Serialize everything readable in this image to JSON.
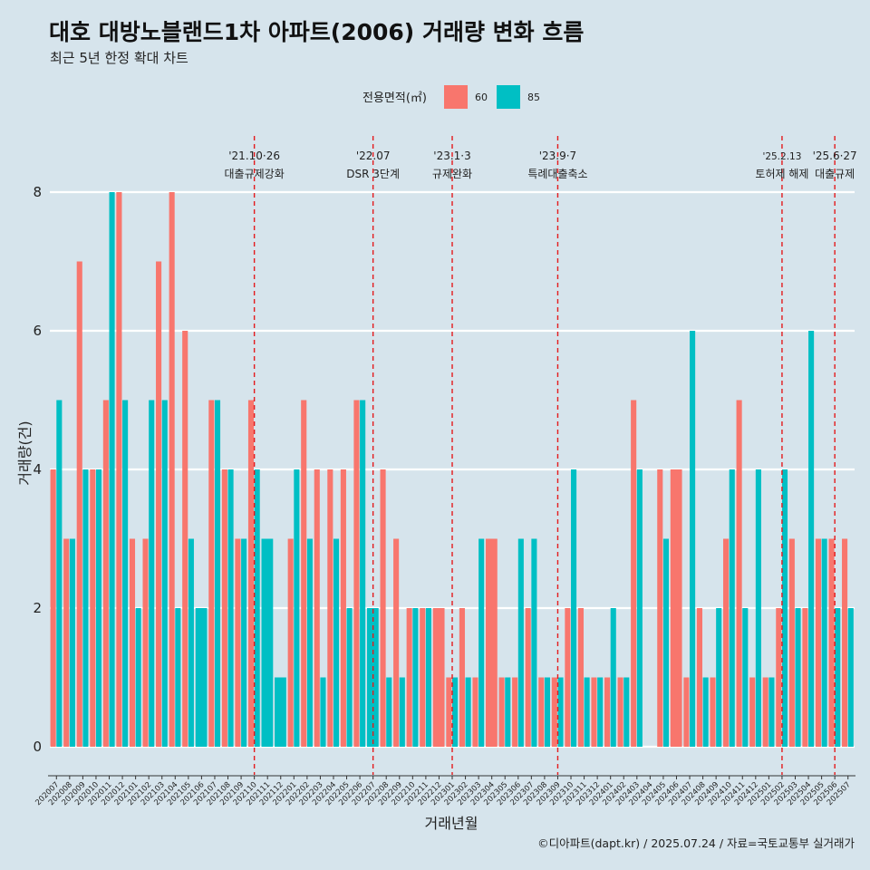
{
  "chart_data": {
    "type": "bar",
    "title": "대호 대방노블랜드1차 아파트(2006) 거래량 변화 흐름",
    "subtitle": "최근 5년 한정 확대 차트",
    "xlabel": "거래년월",
    "ylabel": "거래량(건)",
    "ylim": [
      0,
      8.5
    ],
    "yticks": [
      0,
      2,
      4,
      6,
      8
    ],
    "legend": {
      "title": "전용면적(㎡)",
      "position": "top",
      "entries": [
        {
          "name": "60",
          "color": "#f8766d"
        },
        {
          "name": "85",
          "color": "#00bfc4"
        }
      ]
    },
    "categories": [
      "202007",
      "202008",
      "202009",
      "202010",
      "202011",
      "202012",
      "202101",
      "202102",
      "202103",
      "202104",
      "202105",
      "202106",
      "202107",
      "202108",
      "202109",
      "202110",
      "202111",
      "202112",
      "202201",
      "202202",
      "202203",
      "202204",
      "202205",
      "202206",
      "202207",
      "202208",
      "202209",
      "202210",
      "202211",
      "202212",
      "202301",
      "202302",
      "202303",
      "202304",
      "202305",
      "202306",
      "202307",
      "202308",
      "202309",
      "202310",
      "202311",
      "202312",
      "202401",
      "202402",
      "202403",
      "202404",
      "202405",
      "202406",
      "202407",
      "202408",
      "202409",
      "202410",
      "202411",
      "202412",
      "202501",
      "202502",
      "202503",
      "202504",
      "202505",
      "202506",
      "202507"
    ],
    "series": [
      {
        "name": "60",
        "color": "#f8766d",
        "values": [
          4,
          3,
          7,
          4,
          5,
          8,
          3,
          3,
          7,
          8,
          6,
          null,
          5,
          4,
          3,
          5,
          null,
          null,
          3,
          5,
          4,
          4,
          4,
          5,
          null,
          4,
          3,
          2,
          2,
          2,
          1,
          2,
          1,
          3,
          1,
          1,
          2,
          1,
          1,
          2,
          2,
          1,
          1,
          1,
          5,
          null,
          4,
          4,
          1,
          2,
          1,
          3,
          5,
          1,
          1,
          2,
          3,
          2,
          3,
          3,
          3
        ]
      },
      {
        "name": "85",
        "color": "#00bfc4",
        "values": [
          5,
          3,
          4,
          4,
          8,
          5,
          2,
          5,
          5,
          2,
          3,
          2,
          5,
          4,
          3,
          4,
          3,
          1,
          4,
          3,
          1,
          3,
          2,
          5,
          2,
          1,
          1,
          2,
          2,
          null,
          1,
          1,
          3,
          null,
          1,
          3,
          3,
          1,
          1,
          4,
          1,
          1,
          2,
          1,
          4,
          null,
          3,
          null,
          6,
          1,
          2,
          4,
          2,
          4,
          1,
          4,
          2,
          6,
          3,
          2,
          2
        ]
      }
    ],
    "events": [
      {
        "date": "'21.10·26",
        "name": "대출규제강화",
        "at": "202110"
      },
      {
        "date": "'22.07",
        "name": "DSR 3단계",
        "at": "202207"
      },
      {
        "date": "'23.1·3",
        "name": "규제완화",
        "at": "202301"
      },
      {
        "date": "'23.9·7",
        "name": "특례대출축소",
        "at": "202309"
      },
      {
        "date": "'25.2.13",
        "name": "토허제 해제",
        "at": "202502"
      },
      {
        "date": "'25.6·27",
        "name": "대출규제",
        "at": "202506"
      }
    ],
    "caption": "©디아파트(dapt.kr) / 2025.07.24 / 자료=국토교통부 실거래가"
  }
}
